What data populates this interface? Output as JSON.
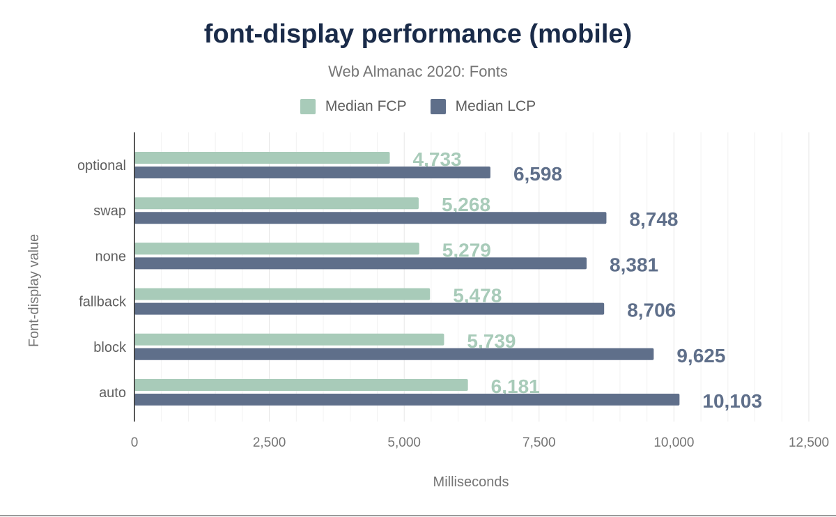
{
  "chart_data": {
    "type": "bar",
    "orientation": "horizontal",
    "title": "font-display performance (mobile)",
    "subtitle": "Web Almanac 2020: Fonts",
    "xlabel": "Milliseconds",
    "ylabel": "Font-display value",
    "xlim": [
      0,
      12500
    ],
    "xticks": [
      "0",
      "2,500",
      "5,000",
      "7,500",
      "10,000",
      "12,500"
    ],
    "xtick_values": [
      0,
      2500,
      5000,
      7500,
      10000,
      12500
    ],
    "grid": true,
    "legend": "top",
    "categories": [
      "optional",
      "swap",
      "none",
      "fallback",
      "block",
      "auto"
    ],
    "series": [
      {
        "name": "Median FCP",
        "color": "#a8cbb9",
        "values": [
          4733,
          5268,
          5279,
          5478,
          5739,
          6181
        ],
        "labels": [
          "4,733",
          "5,268",
          "5,279",
          "5,478",
          "5,739",
          "6,181"
        ]
      },
      {
        "name": "Median LCP",
        "color": "#5f6f8a",
        "values": [
          6598,
          8748,
          8381,
          8706,
          9625,
          10103
        ],
        "labels": [
          "6,598",
          "8,748",
          "8,381",
          "8,706",
          "9,625",
          "10,103"
        ]
      }
    ]
  }
}
